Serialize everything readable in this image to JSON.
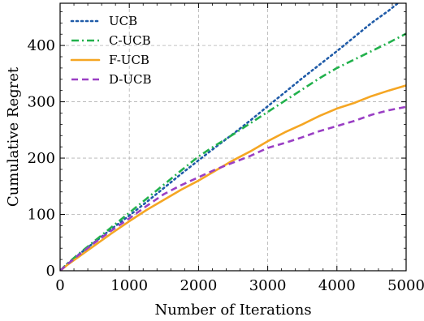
{
  "chart_data": {
    "type": "line",
    "xlabel": "Number of Iterations",
    "ylabel": "Cumulative Regret",
    "xlim": [
      0,
      5000
    ],
    "ylim": [
      0,
      475
    ],
    "xticks": [
      0,
      1000,
      2000,
      3000,
      4000,
      5000
    ],
    "yticks": [
      0,
      100,
      200,
      300,
      400
    ],
    "grid": true,
    "legend_position": "top-left",
    "series": [
      {
        "name": "UCB",
        "color": "#1f5ba8",
        "style": "dotted",
        "x": [
          0,
          100,
          250,
          500,
          750,
          1000,
          1250,
          1500,
          1750,
          2000,
          2250,
          2500,
          2750,
          3000,
          3250,
          3500,
          3750,
          4000,
          4250,
          4500,
          4750,
          5000
        ],
        "y": [
          0,
          12,
          27,
          51,
          75,
          98,
          122,
          147,
          172,
          196,
          220,
          243,
          267,
          292,
          317,
          342,
          366,
          390,
          415,
          440,
          462,
          487
        ]
      },
      {
        "name": "C-UCB",
        "color": "#22b14c",
        "style": "dashdot",
        "x": [
          0,
          100,
          250,
          500,
          750,
          1000,
          1250,
          1500,
          1750,
          2000,
          2250,
          2500,
          2750,
          3000,
          3250,
          3500,
          3750,
          4000,
          4250,
          4500,
          4750,
          5000
        ],
        "y": [
          0,
          12,
          28,
          53,
          78,
          103,
          128,
          153,
          178,
          203,
          223,
          242,
          262,
          282,
          302,
          322,
          342,
          360,
          375,
          390,
          405,
          421
        ]
      },
      {
        "name": "F-UCB",
        "color": "#f5a623",
        "style": "solid",
        "x": [
          0,
          100,
          250,
          500,
          750,
          1000,
          1250,
          1500,
          1750,
          2000,
          2250,
          2500,
          2750,
          3000,
          3250,
          3500,
          3750,
          4000,
          4250,
          4500,
          4750,
          5000
        ],
        "y": [
          0,
          10,
          23,
          45,
          67,
          88,
          108,
          126,
          144,
          160,
          178,
          196,
          212,
          230,
          246,
          260,
          275,
          288,
          298,
          310,
          320,
          329
        ]
      },
      {
        "name": "D-UCB",
        "color": "#9a3fc4",
        "style": "dashed",
        "x": [
          0,
          100,
          250,
          500,
          750,
          1000,
          1250,
          1500,
          1750,
          2000,
          2250,
          2500,
          2750,
          3000,
          3250,
          3500,
          3750,
          4000,
          4250,
          4500,
          4750,
          5000
        ],
        "y": [
          0,
          11,
          26,
          50,
          72,
          93,
          115,
          136,
          152,
          166,
          180,
          192,
          204,
          218,
          227,
          237,
          248,
          257,
          266,
          277,
          285,
          291
        ]
      }
    ]
  }
}
